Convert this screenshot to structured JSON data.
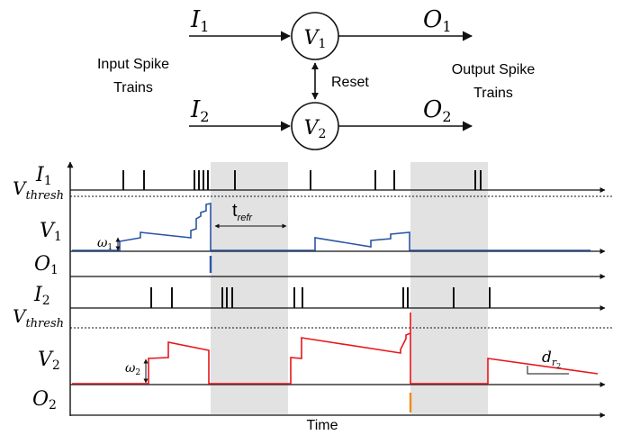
{
  "top": {
    "neuron1": {
      "var": "V",
      "sub": "1"
    },
    "neuron2": {
      "var": "V",
      "sub": "2"
    },
    "in1": {
      "var": "I",
      "sub": "1"
    },
    "in2": {
      "var": "I",
      "sub": "2"
    },
    "out1": {
      "var": "O",
      "sub": "1"
    },
    "out2": {
      "var": "O",
      "sub": "2"
    },
    "reset_label": "Reset",
    "input_label_line1": "Input Spike",
    "input_label_line2": "Trains",
    "output_label_line1": "Output Spike",
    "output_label_line2": "Trains"
  },
  "timing": {
    "row_I1": {
      "var": "I",
      "sub": "1"
    },
    "vthresh1": {
      "var": "V",
      "sub": "thresh"
    },
    "row_V1": {
      "var": "V",
      "sub": "1"
    },
    "w1": {
      "var": "ω",
      "sub": "1"
    },
    "row_O1": {
      "var": "O",
      "sub": "1"
    },
    "row_I2": {
      "var": "I",
      "sub": "2"
    },
    "vthresh2": {
      "var": "V",
      "sub": "thresh"
    },
    "row_V2": {
      "var": "V",
      "sub": "2"
    },
    "w2": {
      "var": "ω",
      "sub": "2"
    },
    "row_O2": {
      "var": "O",
      "sub": "2"
    },
    "trefr": {
      "var": "t",
      "sub": "refr"
    },
    "dr2": {
      "var": "d",
      "sub": "r",
      "subsub": "2"
    },
    "time_label": "Time"
  },
  "colors": {
    "v1_trace": "#2b55a6",
    "v2_trace": "#e8161b",
    "o1_spike": "#2b55a6",
    "o2_spike": "#f28a1c",
    "shade": "#e2e2e2"
  }
}
